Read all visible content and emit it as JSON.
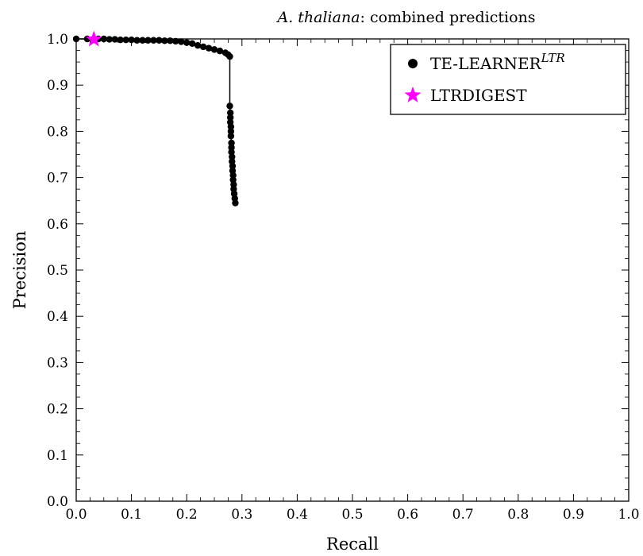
{
  "chart_data": {
    "type": "scatter",
    "title_italic": "A. thaliana",
    "title_rest": ": combined predictions",
    "xlabel": "Recall",
    "ylabel": "Precision",
    "xlim": [
      0.0,
      1.0
    ],
    "ylim": [
      0.0,
      1.0
    ],
    "xticks": [
      "0.0",
      "0.1",
      "0.2",
      "0.3",
      "0.4",
      "0.5",
      "0.6",
      "0.7",
      "0.8",
      "0.9",
      "1.0"
    ],
    "yticks": [
      "0.0",
      "0.1",
      "0.2",
      "0.3",
      "0.4",
      "0.5",
      "0.6",
      "0.7",
      "0.8",
      "0.9",
      "1.0"
    ],
    "grid": false,
    "legend_position": "top-right",
    "series": [
      {
        "name": "TE-LEARNER",
        "name_superscript": "LTR",
        "marker": "circle",
        "color": "#000000",
        "points": [
          [
            0.0,
            1.0
          ],
          [
            0.02,
            1.0
          ],
          [
            0.04,
            1.0
          ],
          [
            0.05,
            1.0
          ],
          [
            0.06,
            0.999
          ],
          [
            0.07,
            0.999
          ],
          [
            0.08,
            0.998
          ],
          [
            0.09,
            0.998
          ],
          [
            0.1,
            0.998
          ],
          [
            0.11,
            0.997
          ],
          [
            0.12,
            0.997
          ],
          [
            0.13,
            0.997
          ],
          [
            0.14,
            0.997
          ],
          [
            0.15,
            0.997
          ],
          [
            0.16,
            0.996
          ],
          [
            0.17,
            0.996
          ],
          [
            0.18,
            0.995
          ],
          [
            0.19,
            0.994
          ],
          [
            0.2,
            0.992
          ],
          [
            0.21,
            0.99
          ],
          [
            0.22,
            0.986
          ],
          [
            0.23,
            0.983
          ],
          [
            0.24,
            0.98
          ],
          [
            0.25,
            0.977
          ],
          [
            0.26,
            0.974
          ],
          [
            0.27,
            0.97
          ],
          [
            0.275,
            0.966
          ],
          [
            0.278,
            0.962
          ],
          [
            0.278,
            0.855
          ],
          [
            0.279,
            0.84
          ],
          [
            0.279,
            0.83
          ],
          [
            0.279,
            0.82
          ],
          [
            0.28,
            0.81
          ],
          [
            0.28,
            0.8
          ],
          [
            0.28,
            0.79
          ],
          [
            0.281,
            0.775
          ],
          [
            0.281,
            0.765
          ],
          [
            0.281,
            0.755
          ],
          [
            0.282,
            0.745
          ],
          [
            0.282,
            0.735
          ],
          [
            0.283,
            0.725
          ],
          [
            0.283,
            0.715
          ],
          [
            0.284,
            0.705
          ],
          [
            0.284,
            0.695
          ],
          [
            0.285,
            0.685
          ],
          [
            0.285,
            0.675
          ],
          [
            0.286,
            0.665
          ],
          [
            0.287,
            0.655
          ],
          [
            0.288,
            0.645
          ]
        ]
      },
      {
        "name": "LTRDIGEST",
        "marker": "star",
        "color": "#ff00ff",
        "points": [
          [
            0.032,
            0.999
          ]
        ]
      }
    ]
  }
}
